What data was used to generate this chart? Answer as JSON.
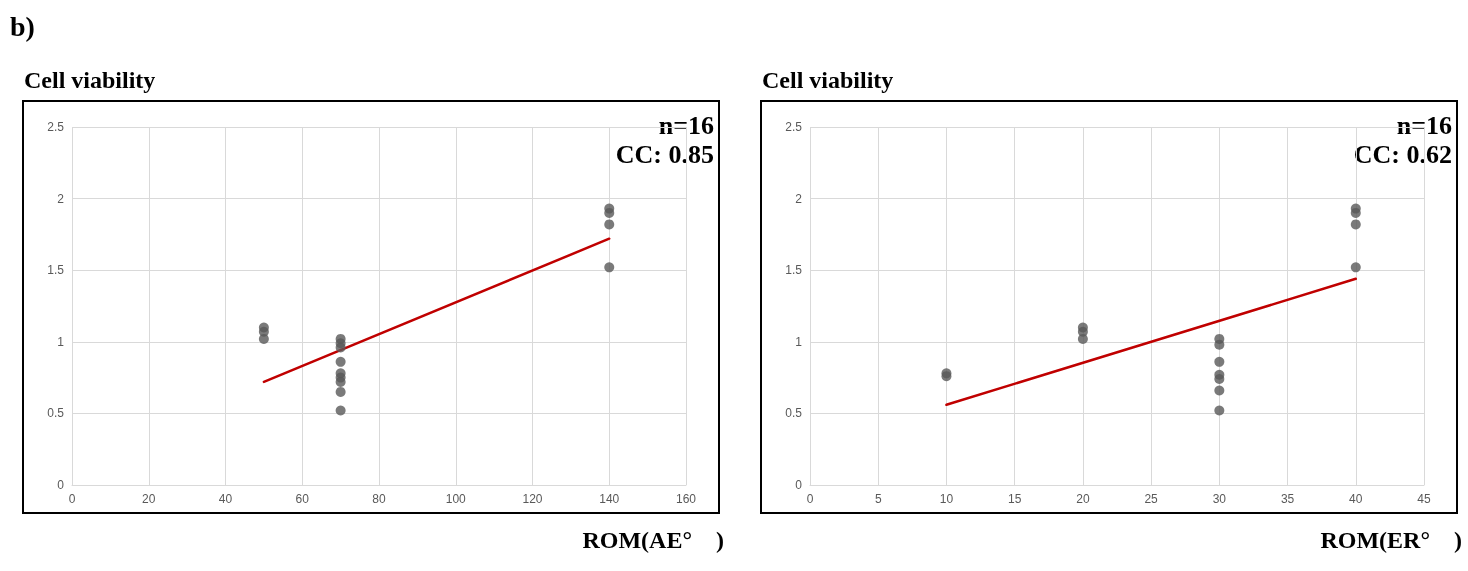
{
  "chart_data": [
    {
      "type": "scatter",
      "title": "b)",
      "ylabel": "Cell viability",
      "xlabel": "ROM(AE°　)",
      "annotations": [
        "n=16",
        "CC: 0.85"
      ],
      "xlim": [
        0,
        160
      ],
      "xticks": [
        0,
        20,
        40,
        60,
        80,
        100,
        120,
        140,
        160
      ],
      "ylim": [
        0,
        2.5
      ],
      "yticks": [
        0,
        0.5,
        1,
        1.5,
        2,
        2.5
      ],
      "grid": true,
      "marker": "circle",
      "series": [
        {
          "color": "#595959",
          "x": [
            50,
            50,
            50,
            70,
            70,
            70,
            70,
            70,
            70,
            70,
            70,
            70,
            140,
            140,
            140,
            140
          ],
          "values": [
            1.1,
            1.07,
            1.02,
            1.02,
            0.99,
            0.96,
            0.86,
            0.78,
            0.75,
            0.72,
            0.65,
            0.52,
            1.93,
            1.9,
            1.82,
            1.52
          ]
        },
        {
          "type": "line",
          "color": "#c00000",
          "marker": "none",
          "x": [
            50,
            140
          ],
          "values": [
            0.72,
            1.72
          ]
        }
      ]
    },
    {
      "type": "scatter",
      "ylabel": "Cell viability",
      "xlabel": "ROM(ER°　)",
      "annotations": [
        "n=16",
        "CC: 0.62"
      ],
      "xlim": [
        0,
        45
      ],
      "xticks": [
        0,
        5,
        10,
        15,
        20,
        25,
        30,
        35,
        40,
        45
      ],
      "ylim": [
        0,
        2.5
      ],
      "yticks": [
        0,
        0.5,
        1,
        1.5,
        2,
        2.5
      ],
      "grid": true,
      "marker": "circle",
      "series": [
        {
          "color": "#595959",
          "x": [
            10,
            10,
            20,
            20,
            20,
            30,
            30,
            30,
            30,
            30,
            30,
            30,
            40,
            40,
            40,
            40
          ],
          "values": [
            0.78,
            0.76,
            1.1,
            1.07,
            1.02,
            1.02,
            0.98,
            0.86,
            0.77,
            0.74,
            0.66,
            0.52,
            1.93,
            1.9,
            1.82,
            1.52
          ]
        },
        {
          "type": "line",
          "color": "#c00000",
          "marker": "none",
          "x": [
            10,
            40
          ],
          "values": [
            0.56,
            1.44
          ]
        }
      ]
    }
  ]
}
